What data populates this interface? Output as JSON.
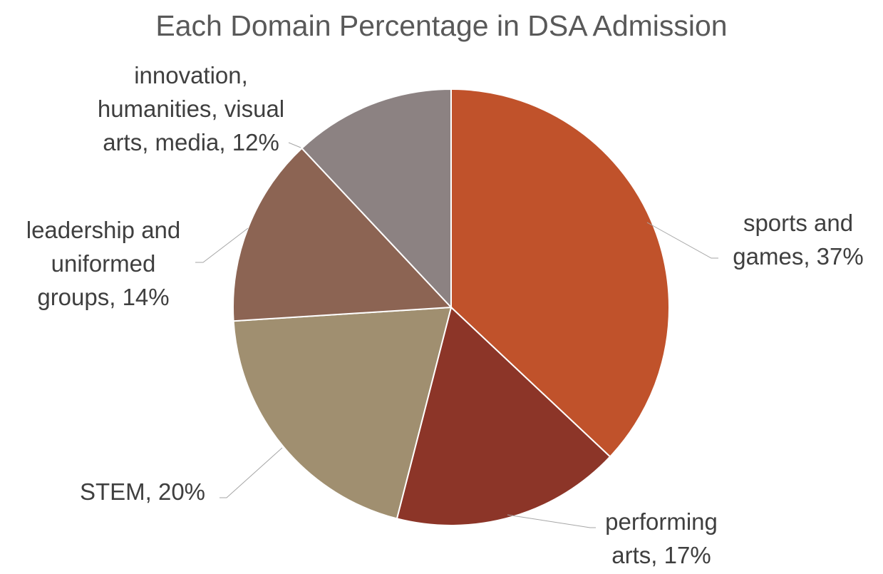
{
  "chart_data": {
    "type": "pie",
    "title": "Each Domain Percentage in DSA Admission",
    "categories": [
      "sports and games",
      "performing arts",
      "STEM",
      "leadership and uniformed groups",
      "innovation, humanities, visual arts, media"
    ],
    "values": [
      37,
      17,
      20,
      14,
      12
    ],
    "unit": "%",
    "colors": [
      "#C0522B",
      "#8C3528",
      "#A08F70",
      "#8C6453",
      "#8C8282"
    ],
    "data_labels": [
      [
        "sports and",
        "games, 37%"
      ],
      [
        "performing",
        "arts, 17%"
      ],
      [
        "STEM, 20%"
      ],
      [
        "leadership and",
        "uniformed",
        "groups, 14%"
      ],
      [
        "innovation,",
        "humanities, visual",
        "arts, media, 12%"
      ]
    ],
    "legend": "none"
  }
}
